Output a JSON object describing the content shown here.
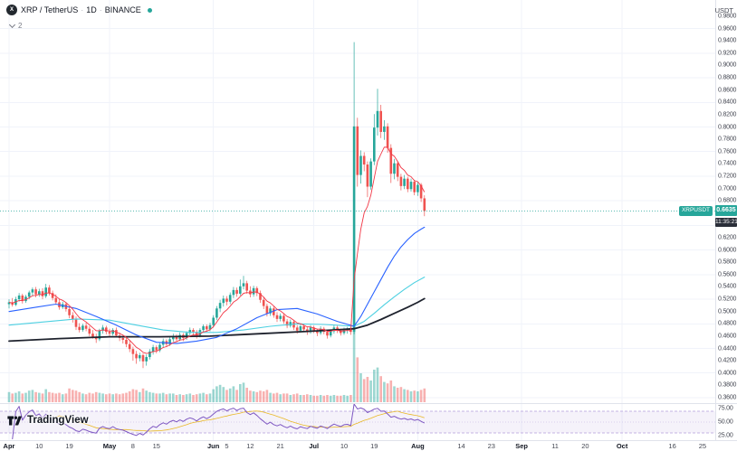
{
  "header": {
    "logo_letter": "X",
    "symbol_name": "XRP / TetherUS",
    "separator": "·",
    "interval": "1D",
    "exchange": "BINANCE",
    "collapsed_count": "2"
  },
  "price_axis": {
    "unit": "USDT",
    "last_price": "0.6635",
    "countdown": "11:35:21",
    "symbol_label": "XRPUSDT",
    "ticks": [
      "0.9800",
      "0.9600",
      "0.9400",
      "0.9200",
      "0.9000",
      "0.8800",
      "0.8600",
      "0.8400",
      "0.8200",
      "0.8000",
      "0.7800",
      "0.7600",
      "0.7400",
      "0.7200",
      "0.7000",
      "0.6800",
      "0.6600",
      "0.6400",
      "0.6200",
      "0.6000",
      "0.5800",
      "0.5600",
      "0.5400",
      "0.5200",
      "0.5000",
      "0.4800",
      "0.4600",
      "0.4400",
      "0.4200",
      "0.4000",
      "0.3800",
      "0.3600"
    ]
  },
  "rsi_axis": {
    "ticks": [
      {
        "label": "75.00",
        "value": 75
      },
      {
        "label": "50.00",
        "value": 50
      },
      {
        "label": "25.00",
        "value": 25
      }
    ]
  },
  "time_axis": {
    "labels": [
      {
        "text": "Apr",
        "day": 0,
        "month": true
      },
      {
        "text": "10",
        "day": 9
      },
      {
        "text": "19",
        "day": 18
      },
      {
        "text": "May",
        "day": 30,
        "month": true
      },
      {
        "text": "8",
        "day": 37
      },
      {
        "text": "15",
        "day": 44
      },
      {
        "text": "Jun",
        "day": 61,
        "month": true
      },
      {
        "text": "5",
        "day": 65
      },
      {
        "text": "12",
        "day": 72
      },
      {
        "text": "21",
        "day": 81
      },
      {
        "text": "Jul",
        "day": 91,
        "month": true
      },
      {
        "text": "10",
        "day": 100
      },
      {
        "text": "19",
        "day": 109
      },
      {
        "text": "Aug",
        "day": 122,
        "month": true
      },
      {
        "text": "14",
        "day": 135
      },
      {
        "text": "23",
        "day": 144
      },
      {
        "text": "Sep",
        "day": 153,
        "month": true
      },
      {
        "text": "11",
        "day": 163
      },
      {
        "text": "20",
        "day": 172
      },
      {
        "text": "Oct",
        "day": 183,
        "month": true
      },
      {
        "text": "16",
        "day": 198
      },
      {
        "text": "25",
        "day": 207
      }
    ]
  },
  "logo": {
    "text": "TradingView"
  },
  "colors": {
    "background": "#ffffff",
    "grid": "#f0f3fa",
    "axis_border": "#e0e3eb",
    "axis_text": "#434651",
    "up": "#26a69a",
    "down": "#ef5350",
    "vol_up": "rgba(38,166,154,0.45)",
    "vol_down": "rgba(239,83,80,0.45)",
    "price_badge_bg": "#26a69a",
    "countdown_bg": "#2a2e39"
  },
  "chart_data": {
    "type": "candlestick",
    "symbol": "XRPUSDT",
    "exchange": "BINANCE",
    "interval": "1D",
    "quote_unit": "USDT",
    "last_price": 0.6635,
    "visible_price_range": [
      0.36,
      0.98
    ],
    "note": "candles = [open, high, low, close, relative_volume 0-100]; index 0 = leftmost daily bar",
    "candles": [
      [
        0.512,
        0.52,
        0.505,
        0.515,
        14
      ],
      [
        0.515,
        0.522,
        0.508,
        0.511,
        12
      ],
      [
        0.511,
        0.524,
        0.509,
        0.52,
        13
      ],
      [
        0.52,
        0.53,
        0.516,
        0.526,
        15
      ],
      [
        0.526,
        0.529,
        0.513,
        0.517,
        12
      ],
      [
        0.517,
        0.527,
        0.514,
        0.524,
        13
      ],
      [
        0.524,
        0.534,
        0.52,
        0.531,
        16
      ],
      [
        0.531,
        0.539,
        0.526,
        0.536,
        17
      ],
      [
        0.536,
        0.54,
        0.523,
        0.528,
        14
      ],
      [
        0.528,
        0.537,
        0.524,
        0.533,
        13
      ],
      [
        0.533,
        0.538,
        0.52,
        0.525,
        12
      ],
      [
        0.525,
        0.545,
        0.522,
        0.539,
        18
      ],
      [
        0.539,
        0.543,
        0.526,
        0.53,
        14
      ],
      [
        0.53,
        0.534,
        0.518,
        0.522,
        13
      ],
      [
        0.522,
        0.528,
        0.511,
        0.515,
        12
      ],
      [
        0.515,
        0.521,
        0.503,
        0.507,
        13
      ],
      [
        0.507,
        0.516,
        0.504,
        0.512,
        11
      ],
      [
        0.512,
        0.515,
        0.5,
        0.504,
        12
      ],
      [
        0.504,
        0.508,
        0.489,
        0.494,
        19
      ],
      [
        0.494,
        0.499,
        0.482,
        0.487,
        17
      ],
      [
        0.487,
        0.492,
        0.47,
        0.475,
        16
      ],
      [
        0.475,
        0.481,
        0.466,
        0.47,
        14
      ],
      [
        0.47,
        0.48,
        0.467,
        0.477,
        12
      ],
      [
        0.477,
        0.482,
        0.468,
        0.472,
        11
      ],
      [
        0.472,
        0.476,
        0.46,
        0.464,
        13
      ],
      [
        0.464,
        0.47,
        0.456,
        0.459,
        12
      ],
      [
        0.459,
        0.464,
        0.449,
        0.455,
        14
      ],
      [
        0.455,
        0.472,
        0.452,
        0.469,
        13
      ],
      [
        0.469,
        0.478,
        0.464,
        0.474,
        12
      ],
      [
        0.474,
        0.477,
        0.463,
        0.467,
        11
      ],
      [
        0.467,
        0.472,
        0.459,
        0.464,
        12
      ],
      [
        0.464,
        0.473,
        0.461,
        0.47,
        11
      ],
      [
        0.47,
        0.474,
        0.458,
        0.461,
        12
      ],
      [
        0.461,
        0.466,
        0.452,
        0.457,
        11
      ],
      [
        0.457,
        0.461,
        0.448,
        0.454,
        12
      ],
      [
        0.454,
        0.458,
        0.442,
        0.447,
        13
      ],
      [
        0.447,
        0.452,
        0.434,
        0.439,
        15
      ],
      [
        0.439,
        0.443,
        0.42,
        0.431,
        18
      ],
      [
        0.431,
        0.436,
        0.415,
        0.424,
        17
      ],
      [
        0.424,
        0.433,
        0.419,
        0.429,
        14
      ],
      [
        0.429,
        0.432,
        0.408,
        0.419,
        19
      ],
      [
        0.419,
        0.43,
        0.412,
        0.426,
        16
      ],
      [
        0.426,
        0.439,
        0.422,
        0.435,
        14
      ],
      [
        0.435,
        0.446,
        0.43,
        0.442,
        13
      ],
      [
        0.442,
        0.445,
        0.432,
        0.437,
        12
      ],
      [
        0.437,
        0.45,
        0.434,
        0.446,
        12
      ],
      [
        0.446,
        0.456,
        0.441,
        0.452,
        13
      ],
      [
        0.452,
        0.455,
        0.442,
        0.447,
        11
      ],
      [
        0.447,
        0.459,
        0.444,
        0.455,
        12
      ],
      [
        0.455,
        0.464,
        0.451,
        0.46,
        12
      ],
      [
        0.46,
        0.463,
        0.45,
        0.455,
        10
      ],
      [
        0.455,
        0.466,
        0.452,
        0.462,
        11
      ],
      [
        0.462,
        0.465,
        0.452,
        0.457,
        10
      ],
      [
        0.457,
        0.468,
        0.454,
        0.465,
        11
      ],
      [
        0.465,
        0.474,
        0.461,
        0.47,
        12
      ],
      [
        0.47,
        0.473,
        0.462,
        0.467,
        10
      ],
      [
        0.467,
        0.47,
        0.456,
        0.461,
        11
      ],
      [
        0.461,
        0.473,
        0.458,
        0.47,
        12
      ],
      [
        0.47,
        0.479,
        0.466,
        0.476,
        13
      ],
      [
        0.476,
        0.479,
        0.467,
        0.471,
        11
      ],
      [
        0.471,
        0.482,
        0.468,
        0.478,
        12
      ],
      [
        0.478,
        0.494,
        0.474,
        0.49,
        18
      ],
      [
        0.49,
        0.509,
        0.486,
        0.505,
        22
      ],
      [
        0.505,
        0.519,
        0.499,
        0.514,
        24
      ],
      [
        0.514,
        0.526,
        0.508,
        0.521,
        21
      ],
      [
        0.521,
        0.525,
        0.51,
        0.516,
        17
      ],
      [
        0.516,
        0.531,
        0.512,
        0.527,
        19
      ],
      [
        0.527,
        0.54,
        0.522,
        0.535,
        22
      ],
      [
        0.535,
        0.539,
        0.524,
        0.529,
        17
      ],
      [
        0.529,
        0.552,
        0.526,
        0.541,
        25
      ],
      [
        0.541,
        0.558,
        0.536,
        0.546,
        27
      ],
      [
        0.546,
        0.55,
        0.529,
        0.534,
        20
      ],
      [
        0.534,
        0.541,
        0.523,
        0.528,
        16
      ],
      [
        0.528,
        0.542,
        0.524,
        0.538,
        15
      ],
      [
        0.538,
        0.541,
        0.525,
        0.53,
        14
      ],
      [
        0.53,
        0.534,
        0.514,
        0.519,
        16
      ],
      [
        0.519,
        0.523,
        0.504,
        0.509,
        15
      ],
      [
        0.509,
        0.513,
        0.492,
        0.497,
        17
      ],
      [
        0.497,
        0.509,
        0.493,
        0.505,
        13
      ],
      [
        0.505,
        0.508,
        0.49,
        0.494,
        12
      ],
      [
        0.494,
        0.499,
        0.483,
        0.488,
        13
      ],
      [
        0.488,
        0.497,
        0.484,
        0.493,
        11
      ],
      [
        0.493,
        0.496,
        0.48,
        0.484,
        12
      ],
      [
        0.484,
        0.488,
        0.473,
        0.477,
        12
      ],
      [
        0.477,
        0.487,
        0.474,
        0.483,
        10
      ],
      [
        0.483,
        0.486,
        0.47,
        0.474,
        11
      ],
      [
        0.474,
        0.478,
        0.464,
        0.469,
        12
      ],
      [
        0.469,
        0.48,
        0.466,
        0.476,
        10
      ],
      [
        0.476,
        0.479,
        0.467,
        0.471,
        10
      ],
      [
        0.471,
        0.475,
        0.462,
        0.467,
        11
      ],
      [
        0.467,
        0.478,
        0.464,
        0.474,
        10
      ],
      [
        0.474,
        0.477,
        0.465,
        0.469,
        9
      ],
      [
        0.469,
        0.472,
        0.46,
        0.465,
        9
      ],
      [
        0.465,
        0.476,
        0.462,
        0.472,
        10
      ],
      [
        0.472,
        0.475,
        0.463,
        0.467,
        9
      ],
      [
        0.467,
        0.47,
        0.456,
        0.461,
        10
      ],
      [
        0.461,
        0.471,
        0.458,
        0.468,
        9
      ],
      [
        0.468,
        0.478,
        0.464,
        0.474,
        10
      ],
      [
        0.474,
        0.477,
        0.465,
        0.469,
        9
      ],
      [
        0.469,
        0.472,
        0.461,
        0.465,
        9
      ],
      [
        0.465,
        0.474,
        0.462,
        0.47,
        10
      ],
      [
        0.47,
        0.475,
        0.464,
        0.471,
        9
      ],
      [
        0.471,
        0.474,
        0.462,
        0.467,
        10
      ],
      [
        0.467,
        0.938,
        0.463,
        0.801,
        100
      ],
      [
        0.801,
        0.815,
        0.703,
        0.722,
        62
      ],
      [
        0.722,
        0.762,
        0.708,
        0.753,
        40
      ],
      [
        0.753,
        0.759,
        0.728,
        0.739,
        32
      ],
      [
        0.739,
        0.744,
        0.686,
        0.703,
        35
      ],
      [
        0.703,
        0.749,
        0.698,
        0.744,
        30
      ],
      [
        0.744,
        0.821,
        0.738,
        0.799,
        45
      ],
      [
        0.799,
        0.862,
        0.786,
        0.826,
        48
      ],
      [
        0.826,
        0.836,
        0.782,
        0.792,
        36
      ],
      [
        0.792,
        0.811,
        0.779,
        0.801,
        28
      ],
      [
        0.801,
        0.806,
        0.758,
        0.766,
        26
      ],
      [
        0.766,
        0.772,
        0.709,
        0.724,
        30
      ],
      [
        0.724,
        0.748,
        0.715,
        0.741,
        22
      ],
      [
        0.741,
        0.745,
        0.712,
        0.719,
        20
      ],
      [
        0.719,
        0.724,
        0.697,
        0.704,
        21
      ],
      [
        0.704,
        0.722,
        0.699,
        0.716,
        18
      ],
      [
        0.716,
        0.719,
        0.694,
        0.699,
        17
      ],
      [
        0.699,
        0.716,
        0.695,
        0.711,
        15
      ],
      [
        0.711,
        0.714,
        0.689,
        0.694,
        16
      ],
      [
        0.694,
        0.711,
        0.688,
        0.706,
        15
      ],
      [
        0.706,
        0.709,
        0.678,
        0.684,
        17
      ],
      [
        0.684,
        0.689,
        0.655,
        0.6635,
        19
      ]
    ],
    "overlays": [
      {
        "name": "ma-long",
        "color": "#1e222d",
        "width": 1.8,
        "points": [
          [
            0,
            0.452
          ],
          [
            15,
            0.456
          ],
          [
            30,
            0.459
          ],
          [
            45,
            0.459
          ],
          [
            60,
            0.46
          ],
          [
            75,
            0.464
          ],
          [
            90,
            0.468
          ],
          [
            100,
            0.471
          ],
          [
            103,
            0.472
          ],
          [
            107,
            0.478
          ],
          [
            111,
            0.487
          ],
          [
            115,
            0.497
          ],
          [
            119,
            0.507
          ],
          [
            122,
            0.515
          ],
          [
            124,
            0.521
          ]
        ]
      },
      {
        "name": "ma-slow",
        "color": "#4dd0e1",
        "width": 1.1,
        "points": [
          [
            0,
            0.478
          ],
          [
            10,
            0.483
          ],
          [
            20,
            0.488
          ],
          [
            30,
            0.486
          ],
          [
            38,
            0.478
          ],
          [
            46,
            0.47
          ],
          [
            54,
            0.466
          ],
          [
            62,
            0.466
          ],
          [
            70,
            0.47
          ],
          [
            78,
            0.476
          ],
          [
            86,
            0.48
          ],
          [
            94,
            0.479
          ],
          [
            100,
            0.477
          ],
          [
            103,
            0.476
          ],
          [
            106,
            0.484
          ],
          [
            109,
            0.497
          ],
          [
            112,
            0.511
          ],
          [
            115,
            0.524
          ],
          [
            118,
            0.536
          ],
          [
            121,
            0.547
          ],
          [
            124,
            0.556
          ]
        ]
      },
      {
        "name": "ma-mid",
        "color": "#2962ff",
        "width": 1.1,
        "points": [
          [
            0,
            0.5
          ],
          [
            8,
            0.507
          ],
          [
            14,
            0.512
          ],
          [
            20,
            0.505
          ],
          [
            26,
            0.492
          ],
          [
            32,
            0.478
          ],
          [
            38,
            0.462
          ],
          [
            44,
            0.45
          ],
          [
            50,
            0.448
          ],
          [
            56,
            0.452
          ],
          [
            62,
            0.458
          ],
          [
            68,
            0.472
          ],
          [
            74,
            0.49
          ],
          [
            80,
            0.503
          ],
          [
            86,
            0.505
          ],
          [
            92,
            0.496
          ],
          [
            98,
            0.484
          ],
          [
            103,
            0.476
          ],
          [
            105,
            0.492
          ],
          [
            107,
            0.512
          ],
          [
            109,
            0.532
          ],
          [
            111,
            0.552
          ],
          [
            113,
            0.572
          ],
          [
            115,
            0.59
          ],
          [
            117,
            0.605
          ],
          [
            119,
            0.617
          ],
          [
            121,
            0.627
          ],
          [
            123,
            0.634
          ],
          [
            124,
            0.637
          ]
        ]
      },
      {
        "name": "ma-fast",
        "type": "ema",
        "alpha": 0.25,
        "color": "#f23645",
        "width": 0.9
      }
    ],
    "rsi": {
      "period": 14,
      "color": "#7e57c2",
      "ma_color": "#e8b10e",
      "level_color": "#b39ddb",
      "mid_color": "#cfc3e8",
      "band": [
        30,
        70
      ],
      "band_color": "rgba(126,87,194,0.08)",
      "levels": [
        70,
        50,
        30
      ]
    }
  }
}
